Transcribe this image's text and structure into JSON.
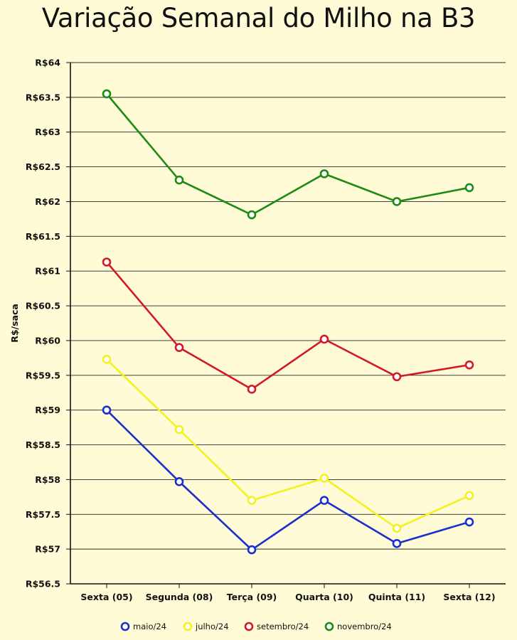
{
  "chart_data": {
    "type": "line",
    "title": "Variação Semanal do Milho na B3",
    "xlabel": "",
    "ylabel": "R$/saca",
    "categories": [
      "Sexta (05)",
      "Segunda (08)",
      "Terça (09)",
      "Quarta (10)",
      "Quinta (11)",
      "Sexta (12)"
    ],
    "ylim": [
      56.5,
      64
    ],
    "yticks": [
      56.5,
      57,
      57.5,
      58,
      58.5,
      59,
      59.5,
      60,
      60.5,
      61,
      61.5,
      62,
      62.5,
      63,
      63.5,
      64
    ],
    "ytick_labels": [
      "R$56.5",
      "R$57",
      "R$57.5",
      "R$58",
      "R$58.5",
      "R$59",
      "R$59.5",
      "R$60",
      "R$60.5",
      "R$61",
      "R$61.5",
      "R$62",
      "R$62.5",
      "R$63",
      "R$63.5",
      "R$64"
    ],
    "grid": true,
    "legend_position": "bottom",
    "series": [
      {
        "name": "maio/24",
        "color": "#1a2fcc",
        "values": [
          59.0,
          57.97,
          56.99,
          57.7,
          57.08,
          57.39
        ]
      },
      {
        "name": "julho/24",
        "color": "#f5f020",
        "values": [
          59.73,
          58.72,
          57.7,
          58.02,
          57.3,
          57.77
        ]
      },
      {
        "name": "setembro/24",
        "color": "#d21a26",
        "values": [
          61.13,
          59.9,
          59.3,
          60.02,
          59.48,
          59.65
        ]
      },
      {
        "name": "novembro/24",
        "color": "#1d8a16",
        "values": [
          63.55,
          62.31,
          61.81,
          62.4,
          62.0,
          62.2
        ]
      }
    ]
  }
}
